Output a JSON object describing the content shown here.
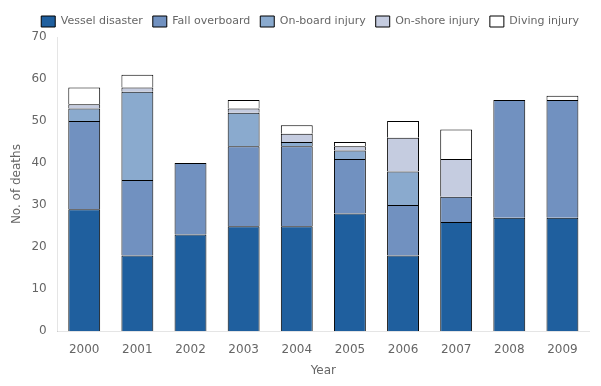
{
  "chart_data": {
    "type": "bar",
    "categories": [
      "2000",
      "2001",
      "2002",
      "2003",
      "2004",
      "2005",
      "2006",
      "2007",
      "2008",
      "2009"
    ],
    "series": [
      {
        "name": "Vessel disaster",
        "color": "#1f5f9e",
        "values": [
          29,
          18,
          23,
          25,
          25,
          28,
          18,
          26,
          27,
          27
        ]
      },
      {
        "name": "Fall overboard",
        "color": "#7191c0",
        "values": [
          21,
          18,
          17,
          19,
          19,
          13,
          12,
          6,
          28,
          28
        ]
      },
      {
        "name": "On-board injury",
        "color": "#8aaace",
        "values": [
          3,
          21,
          0,
          8,
          1,
          2,
          8,
          0,
          0,
          0
        ]
      },
      {
        "name": "On-shore injury",
        "color": "#c5cce0",
        "values": [
          1,
          1,
          0,
          1,
          2,
          1,
          8,
          9,
          0,
          0
        ]
      },
      {
        "name": "Diving injury",
        "color": "#ffffff",
        "values": [
          4,
          3,
          0,
          2,
          2,
          1,
          4,
          7,
          0,
          1
        ]
      }
    ],
    "xlabel": "Year",
    "ylabel": "No. of deaths",
    "ylim": [
      0,
      70
    ],
    "yticks": [
      0,
      10,
      20,
      30,
      40,
      50,
      60,
      70
    ],
    "stacked": true,
    "grid": false,
    "legend": "upper right"
  }
}
